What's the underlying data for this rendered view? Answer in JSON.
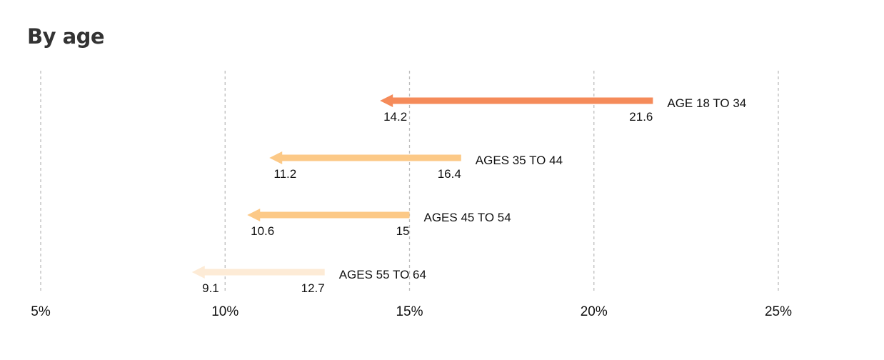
{
  "chart_data": {
    "type": "arrow",
    "title": "By age",
    "xlabel": "",
    "ylabel": "",
    "xlim": [
      5,
      25
    ],
    "x_ticks": [
      5,
      10,
      15,
      20,
      25
    ],
    "x_tick_labels": [
      "5%",
      "10%",
      "15%",
      "20%",
      "25%"
    ],
    "grid": "vertical dashed",
    "series": [
      {
        "label": "AGE 18 TO 34",
        "from": 21.6,
        "to": 14.2,
        "from_label": "21.6",
        "to_label": "14.2",
        "color": "#f58b5a"
      },
      {
        "label": "AGES 35 TO 44",
        "from": 16.4,
        "to": 11.2,
        "from_label": "16.4",
        "to_label": "11.2",
        "color": "#fcc987"
      },
      {
        "label": "AGES 45 TO 54",
        "from": 15,
        "to": 10.6,
        "from_label": "15",
        "to_label": "10.6",
        "color": "#fcc987"
      },
      {
        "label": "AGES 55 TO 64",
        "from": 12.7,
        "to": 9.1,
        "from_label": "12.7",
        "to_label": "9.1",
        "color": "#fdebd6"
      }
    ]
  }
}
